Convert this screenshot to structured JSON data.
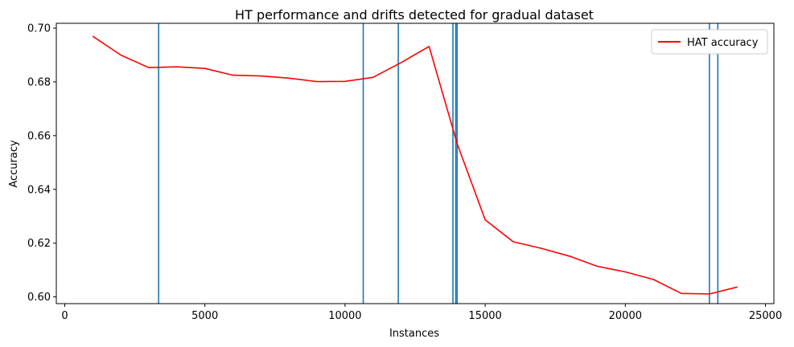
{
  "chart_data": {
    "type": "line",
    "title": "HT performance and drifts detected for gradual dataset",
    "xlabel": "Instances",
    "ylabel": "Accuracy",
    "xlim": [
      -300,
      25300
    ],
    "ylim": [
      0.5975,
      0.7018
    ],
    "xticks": [
      0,
      5000,
      10000,
      15000,
      20000,
      25000
    ],
    "yticks": [
      0.6,
      0.62,
      0.64,
      0.66,
      0.68,
      0.7
    ],
    "xtick_labels": [
      "0",
      "5000",
      "10000",
      "15000",
      "20000",
      "25000"
    ],
    "ytick_labels": [
      "0.60",
      "0.62",
      "0.64",
      "0.66",
      "0.68",
      "0.70"
    ],
    "grid": false,
    "legend_position": "top-right",
    "series": [
      {
        "name": "HAT accuracy",
        "color": "#ff0000",
        "x": [
          1000,
          2000,
          3000,
          4000,
          5000,
          6000,
          7000,
          8000,
          9000,
          10000,
          11000,
          12000,
          13000,
          14000,
          15000,
          16000,
          17000,
          18000,
          19000,
          20000,
          21000,
          22000,
          23000,
          24000
        ],
        "y": [
          0.697,
          0.69,
          0.6853,
          0.6856,
          0.685,
          0.6825,
          0.6822,
          0.6814,
          0.6801,
          0.6802,
          0.6817,
          0.6872,
          0.6932,
          0.657,
          0.6287,
          0.6205,
          0.6181,
          0.6152,
          0.6114,
          0.6093,
          0.6065,
          0.6013,
          0.6011,
          0.6037
        ]
      }
    ],
    "drift_lines": {
      "color": "#1f77b4",
      "x": [
        3350,
        10650,
        11900,
        13850,
        13950,
        14000,
        23000,
        23300
      ]
    }
  }
}
